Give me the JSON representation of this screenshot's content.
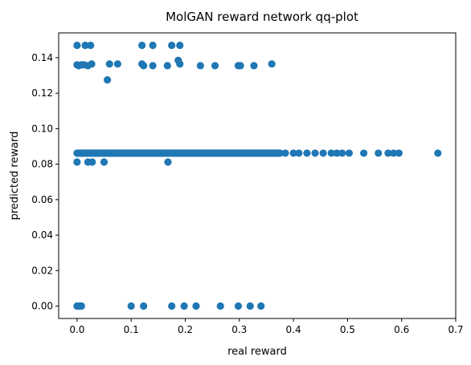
{
  "chart_data": {
    "type": "scatter",
    "title": "MolGAN reward network qq-plot",
    "xlabel": "real reward",
    "ylabel": "predicted reward",
    "xlim": [
      -0.034,
      0.7
    ],
    "ylim": [
      -0.007,
      0.154
    ],
    "x_ticks": [
      0.0,
      0.1,
      0.2,
      0.3,
      0.4,
      0.5,
      0.6,
      0.7
    ],
    "x_tick_labels": [
      "0.0",
      "0.1",
      "0.2",
      "0.3",
      "0.4",
      "0.5",
      "0.6",
      "0.7"
    ],
    "y_ticks": [
      0.0,
      0.02,
      0.04,
      0.06,
      0.08,
      0.1,
      0.12,
      0.14
    ],
    "y_tick_labels": [
      "0.00",
      "0.02",
      "0.04",
      "0.06",
      "0.08",
      "0.10",
      "0.12",
      "0.14"
    ],
    "marker_color": "#1f77b4",
    "grid": false,
    "legend": "none",
    "series": [
      {
        "points": [
          [
            0.0,
            0.147
          ],
          [
            0.015,
            0.147
          ],
          [
            0.025,
            0.147
          ],
          [
            0.12,
            0.147
          ],
          [
            0.14,
            0.147
          ],
          [
            0.175,
            0.147
          ],
          [
            0.19,
            0.147
          ],
          [
            0.0,
            0.136
          ],
          [
            0.003,
            0.1355
          ],
          [
            0.008,
            0.136
          ],
          [
            0.013,
            0.136
          ],
          [
            0.02,
            0.1355
          ],
          [
            0.027,
            0.1365
          ],
          [
            0.06,
            0.1365
          ],
          [
            0.075,
            0.1365
          ],
          [
            0.12,
            0.1365
          ],
          [
            0.123,
            0.1355
          ],
          [
            0.14,
            0.1355
          ],
          [
            0.167,
            0.1355
          ],
          [
            0.187,
            0.1385
          ],
          [
            0.19,
            0.1365
          ],
          [
            0.228,
            0.1355
          ],
          [
            0.255,
            0.1355
          ],
          [
            0.298,
            0.1355
          ],
          [
            0.302,
            0.1355
          ],
          [
            0.327,
            0.1355
          ],
          [
            0.36,
            0.1365
          ],
          [
            0.056,
            0.1275
          ],
          [
            0.0,
            0.0812
          ],
          [
            0.02,
            0.0812
          ],
          [
            0.028,
            0.0812
          ],
          [
            0.05,
            0.0812
          ],
          [
            0.168,
            0.0812
          ],
          [
            0.0,
            0.0
          ],
          [
            0.005,
            0.0
          ],
          [
            0.008,
            0.0
          ],
          [
            0.1,
            0.0
          ],
          [
            0.123,
            0.0
          ],
          [
            0.175,
            0.0
          ],
          [
            0.198,
            0.0
          ],
          [
            0.22,
            0.0
          ],
          [
            0.265,
            0.0
          ],
          [
            0.298,
            0.0
          ],
          [
            0.32,
            0.0
          ],
          [
            0.34,
            0.0
          ],
          [
            0.385,
            0.0862
          ],
          [
            0.4,
            0.0862
          ],
          [
            0.41,
            0.0862
          ],
          [
            0.425,
            0.0862
          ],
          [
            0.44,
            0.0862
          ],
          [
            0.455,
            0.0862
          ],
          [
            0.47,
            0.0862
          ],
          [
            0.48,
            0.0862
          ],
          [
            0.49,
            0.0862
          ],
          [
            0.503,
            0.0862
          ],
          [
            0.53,
            0.0862
          ],
          [
            0.557,
            0.0862
          ],
          [
            0.575,
            0.0862
          ],
          [
            0.585,
            0.0862
          ],
          [
            0.595,
            0.0862
          ],
          [
            0.667,
            0.0862
          ]
        ],
        "dense_band": {
          "y": 0.0862,
          "x_from": 0.0,
          "x_to": 0.375
        }
      }
    ]
  }
}
